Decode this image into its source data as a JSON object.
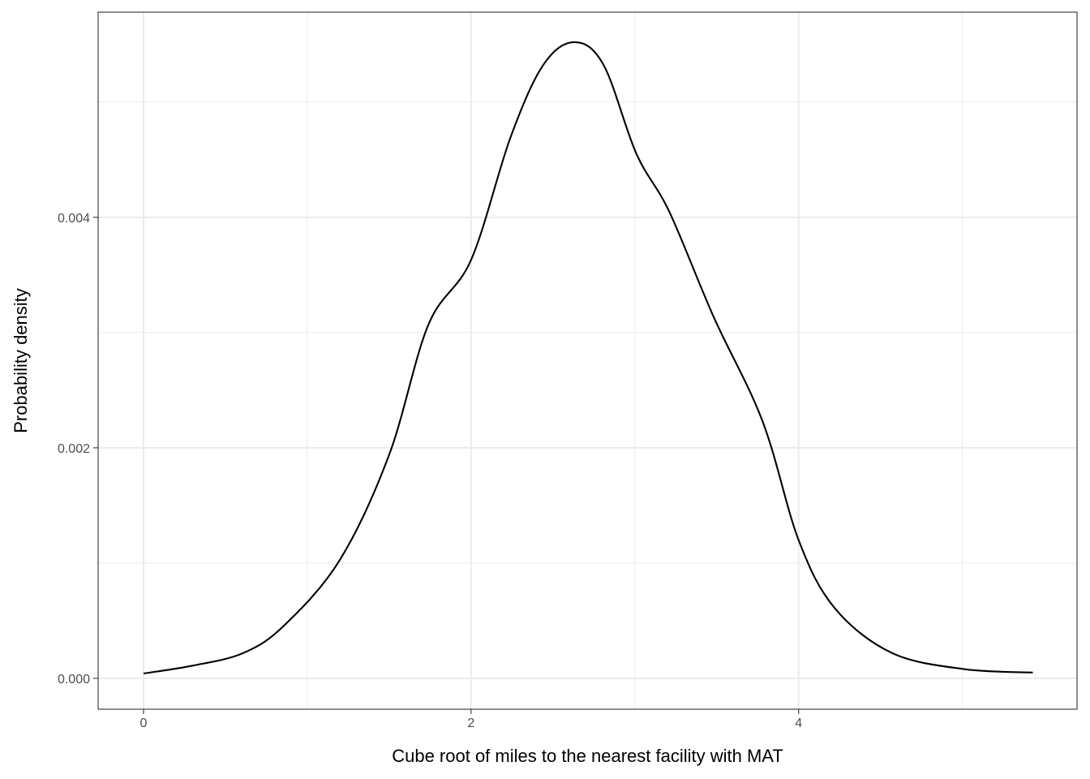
{
  "chart_data": {
    "type": "line",
    "title": "",
    "xlabel": "Cube root of miles to the nearest facility with MAT",
    "ylabel": "Probability density",
    "xlim": [
      -0.277,
      5.7
    ],
    "ylim": [
      -0.000268,
      0.00578
    ],
    "x_ticks": [
      0,
      2,
      4
    ],
    "x_tick_labels": [
      "0",
      "2",
      "4"
    ],
    "x_minor": [
      1,
      3,
      5
    ],
    "y_ticks": [
      0,
      0.002,
      0.004
    ],
    "y_tick_labels": [
      "0.000",
      "0.002",
      "0.004"
    ],
    "y_minor": [
      0.001,
      0.003,
      0.005
    ],
    "grid": true,
    "legend": "none",
    "series": [
      {
        "name": "density",
        "color": "#000000",
        "x": [
          0,
          0.3,
          0.61,
          0.86,
          1.2,
          1.5,
          1.74,
          2.0,
          2.24,
          2.44,
          2.63,
          2.81,
          3.01,
          3.21,
          3.48,
          3.78,
          4.0,
          4.22,
          4.57,
          5.01,
          5.43
        ],
        "y": [
          4.2e-05,
          0.00011,
          0.00022,
          0.00046,
          0.00103,
          0.00194,
          0.00307,
          0.00363,
          0.00469,
          0.00532,
          0.00552,
          0.00532,
          0.00455,
          0.00405,
          0.00314,
          0.00223,
          0.0012,
          0.00061,
          0.00022,
          8e-05,
          5e-05
        ]
      }
    ]
  }
}
